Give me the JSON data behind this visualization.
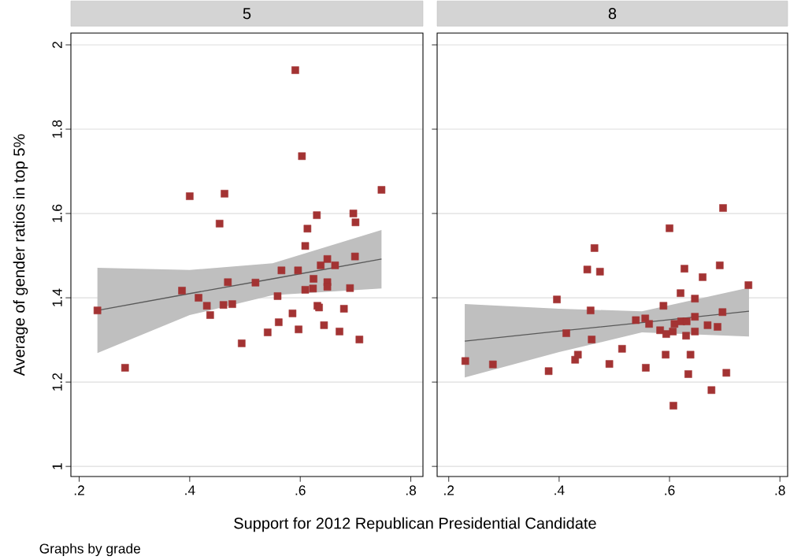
{
  "chart_data": [
    {
      "type": "scatter",
      "title": "5",
      "xlabel": "Support for 2012 Republican Presidential Candidate",
      "ylabel": "Average of gender ratios in top 5%",
      "annotations": [
        "Graphs by grade"
      ],
      "grid": "y",
      "xlim": [
        0.185,
        0.822
      ],
      "ylim": [
        0.976,
        2.028
      ],
      "xticks": [
        {
          "value": 0.2,
          "label": ".2"
        },
        {
          "value": 0.4,
          "label": ".4"
        },
        {
          "value": 0.6,
          "label": ".6"
        },
        {
          "value": 0.8,
          "label": ".8"
        }
      ],
      "yticks": [
        1,
        1.2,
        1.4,
        1.6,
        1.8,
        2
      ],
      "series": [
        {
          "type": "line",
          "color": "#595959",
          "x": [
            0.233,
            0.4,
            0.55,
            0.747
          ],
          "values": [
            1.37,
            1.41,
            1.445,
            1.492
          ],
          "lower": [
            1.269,
            1.359,
            1.406,
            1.422
          ],
          "upper": [
            1.471,
            1.466,
            1.482,
            1.561
          ]
        },
        {
          "marker": "square",
          "color": "#a33333",
          "x": [
            0.233,
            0.283,
            0.386,
            0.416,
            0.431,
            0.437,
            0.461,
            0.477,
            0.469,
            0.494,
            0.519,
            0.541,
            0.559,
            0.561,
            0.566,
            0.586,
            0.597,
            0.596,
            0.609,
            0.609,
            0.623,
            0.624,
            0.631,
            0.634,
            0.643,
            0.637,
            0.649,
            0.649,
            0.649,
            0.663,
            0.671,
            0.679,
            0.69,
            0.699,
            0.707,
            0.591,
            0.603,
            0.4,
            0.463,
            0.747,
            0.63,
            0.696,
            0.7,
            0.454,
            0.613
          ],
          "values": [
            1.37,
            1.234,
            1.417,
            1.4,
            1.381,
            1.359,
            1.383,
            1.385,
            1.437,
            1.292,
            1.436,
            1.318,
            1.404,
            1.342,
            1.465,
            1.363,
            1.325,
            1.465,
            1.523,
            1.419,
            1.422,
            1.445,
            1.381,
            1.377,
            1.335,
            1.477,
            1.492,
            1.437,
            1.426,
            1.477,
            1.32,
            1.374,
            1.423,
            1.498,
            1.301,
            1.94,
            1.736,
            1.641,
            1.647,
            1.656,
            1.596,
            1.6,
            1.579,
            1.576,
            1.564
          ]
        }
      ]
    },
    {
      "type": "scatter",
      "title": "8",
      "grid": "y",
      "tick_labels": "x",
      "xlim": [
        0.179,
        0.814
      ],
      "ylim": [
        0.976,
        2.028
      ],
      "xticks": [
        {
          "value": 0.2,
          "label": ".2"
        },
        {
          "value": 0.4,
          "label": ".4"
        },
        {
          "value": 0.6,
          "label": ".6"
        },
        {
          "value": 0.8,
          "label": ".8"
        }
      ],
      "yticks": [
        1,
        1.2,
        1.4,
        1.6,
        1.8,
        2
      ],
      "series": [
        {
          "type": "line",
          "color": "#595959",
          "x": [
            0.229,
            0.4,
            0.55,
            0.744
          ],
          "values": [
            1.297,
            1.321,
            1.341,
            1.368
          ],
          "lower": [
            1.211,
            1.271,
            1.318,
            1.308
          ],
          "upper": [
            1.385,
            1.374,
            1.368,
            1.424
          ]
        },
        {
          "marker": "square",
          "color": "#a33333",
          "x": [
            0.23,
            0.28,
            0.381,
            0.396,
            0.413,
            0.429,
            0.434,
            0.451,
            0.457,
            0.459,
            0.464,
            0.474,
            0.491,
            0.514,
            0.539,
            0.556,
            0.563,
            0.557,
            0.583,
            0.589,
            0.593,
            0.594,
            0.6,
            0.607,
            0.606,
            0.609,
            0.62,
            0.621,
            0.627,
            0.63,
            0.631,
            0.634,
            0.638,
            0.646,
            0.646,
            0.646,
            0.66,
            0.669,
            0.676,
            0.687,
            0.691,
            0.696,
            0.697,
            0.703,
            0.743
          ],
          "values": [
            1.25,
            1.242,
            1.226,
            1.396,
            1.316,
            1.253,
            1.265,
            1.467,
            1.37,
            1.301,
            1.518,
            1.462,
            1.243,
            1.279,
            1.347,
            1.351,
            1.338,
            1.234,
            1.323,
            1.381,
            1.265,
            1.314,
            1.565,
            1.144,
            1.32,
            1.338,
            1.411,
            1.344,
            1.469,
            1.31,
            1.344,
            1.219,
            1.265,
            1.398,
            1.355,
            1.32,
            1.449,
            1.335,
            1.181,
            1.331,
            1.477,
            1.366,
            1.613,
            1.222,
            1.43
          ]
        }
      ]
    }
  ]
}
